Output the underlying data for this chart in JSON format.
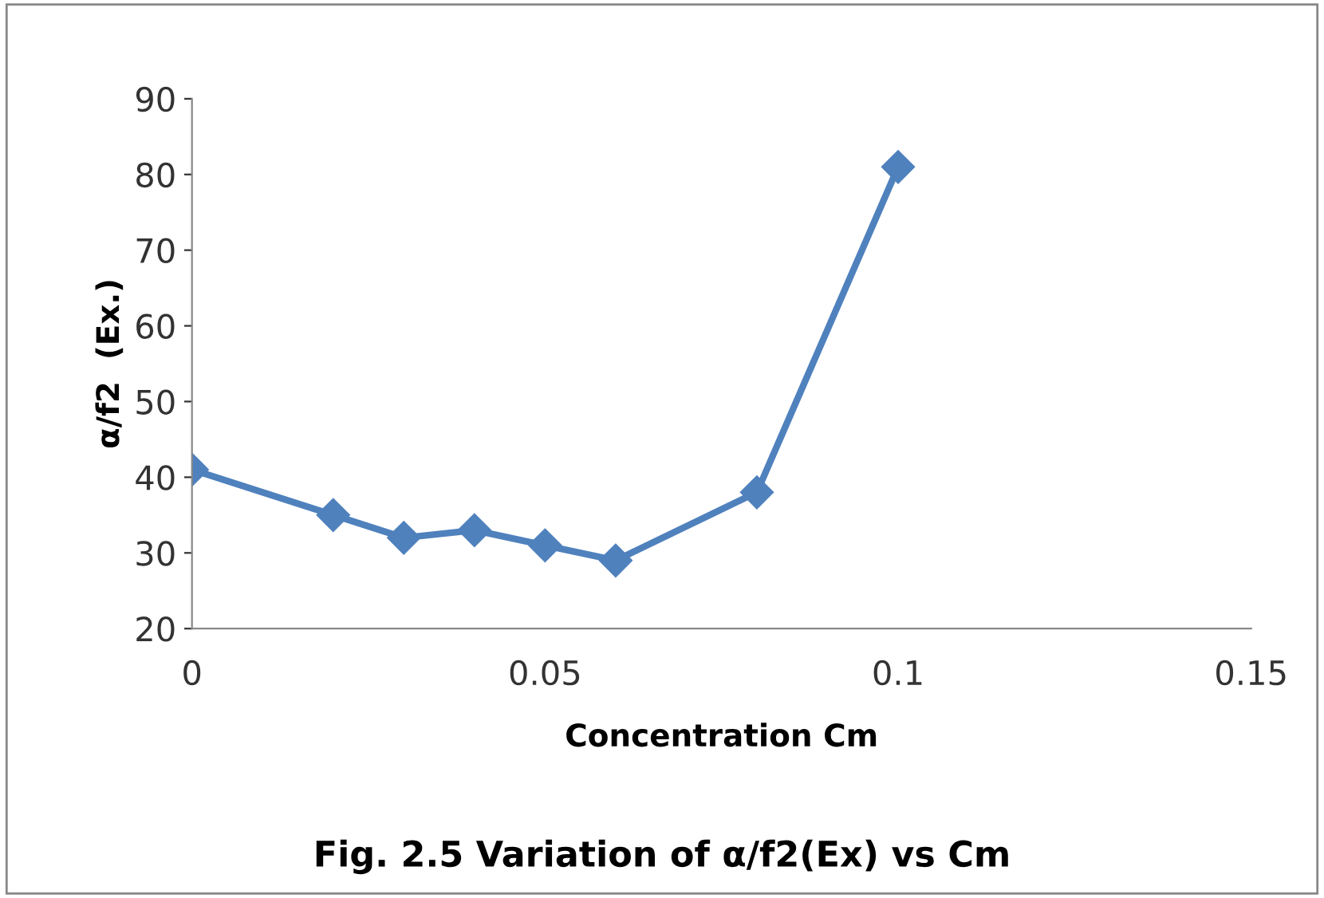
{
  "chart_data": {
    "type": "line",
    "title": "Fig. 2.5 Variation of α/f2(Ex) vs Cm",
    "xlabel": "Concentration Cm",
    "ylabel": "α/f2  (Ex.)",
    "x": [
      0,
      0.02,
      0.03,
      0.04,
      0.05,
      0.06,
      0.08,
      0.1
    ],
    "series": [
      {
        "color": "#4f81bd",
        "values": [
          41,
          35,
          32,
          33,
          31,
          29,
          38,
          81
        ]
      }
    ],
    "xlim": [
      0,
      0.15
    ],
    "xticks": [
      0,
      0.05,
      0.1,
      0.15
    ],
    "ylim": [
      20,
      90
    ],
    "yticks": [
      20,
      30,
      40,
      50,
      60,
      70,
      80,
      90
    ],
    "grid": false,
    "legend": false,
    "marker": "diamond",
    "line_style": "solid"
  }
}
